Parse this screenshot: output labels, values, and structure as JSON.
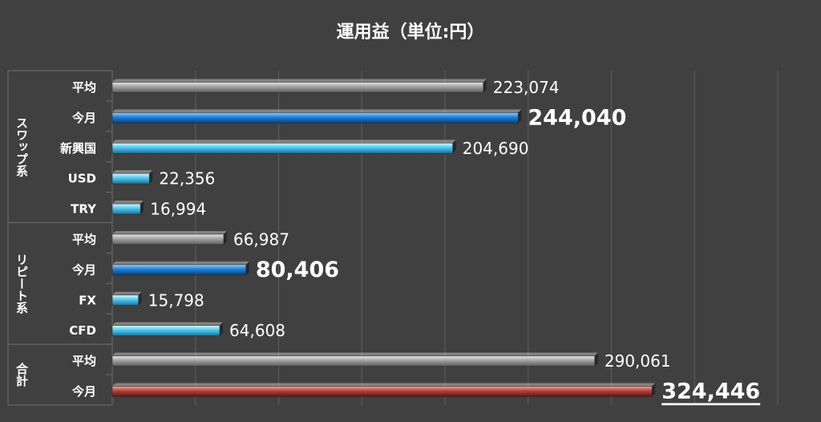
{
  "chart_data": {
    "type": "bar",
    "orientation": "horizontal",
    "title": "運用益（単位:円）",
    "xlim": [
      0,
      400000
    ],
    "grid": true,
    "legend": "none",
    "groups": [
      {
        "label": "スワップ系",
        "rows": [
          0,
          4
        ]
      },
      {
        "label": "リピート系",
        "rows": [
          5,
          8
        ]
      },
      {
        "label": "合計",
        "rows": [
          9,
          10
        ]
      }
    ],
    "categories": [
      "平均",
      "今月",
      "新興国",
      "USD",
      "TRY",
      "平均",
      "今月",
      "FX",
      "CFD",
      "平均",
      "今月"
    ],
    "values": [
      223074,
      244040,
      204690,
      22356,
      16994,
      66987,
      80406,
      15798,
      64608,
      290061,
      324446
    ],
    "value_labels": [
      "223,074",
      "244,040",
      "204,690",
      "22,356",
      "16,994",
      "66,987",
      "80,406",
      "15,798",
      "64,608",
      "290,061",
      "324,446"
    ],
    "bar_colors": [
      "gray",
      "blue",
      "light-blue",
      "light-blue",
      "light-blue",
      "gray",
      "blue",
      "light-blue",
      "light-blue",
      "gray",
      "red"
    ],
    "emphasized": [
      false,
      true,
      false,
      false,
      false,
      false,
      true,
      false,
      false,
      false,
      true
    ],
    "underlined": [
      false,
      false,
      false,
      false,
      false,
      false,
      false,
      false,
      false,
      false,
      true
    ],
    "colors": {
      "background": "#404040",
      "grid": "#5e5e5e",
      "text": "#ffffff",
      "gray": "#8c8c8c",
      "blue": "#1f7fd6",
      "light-blue": "#4fc6ee",
      "red": "#b5403a"
    }
  }
}
